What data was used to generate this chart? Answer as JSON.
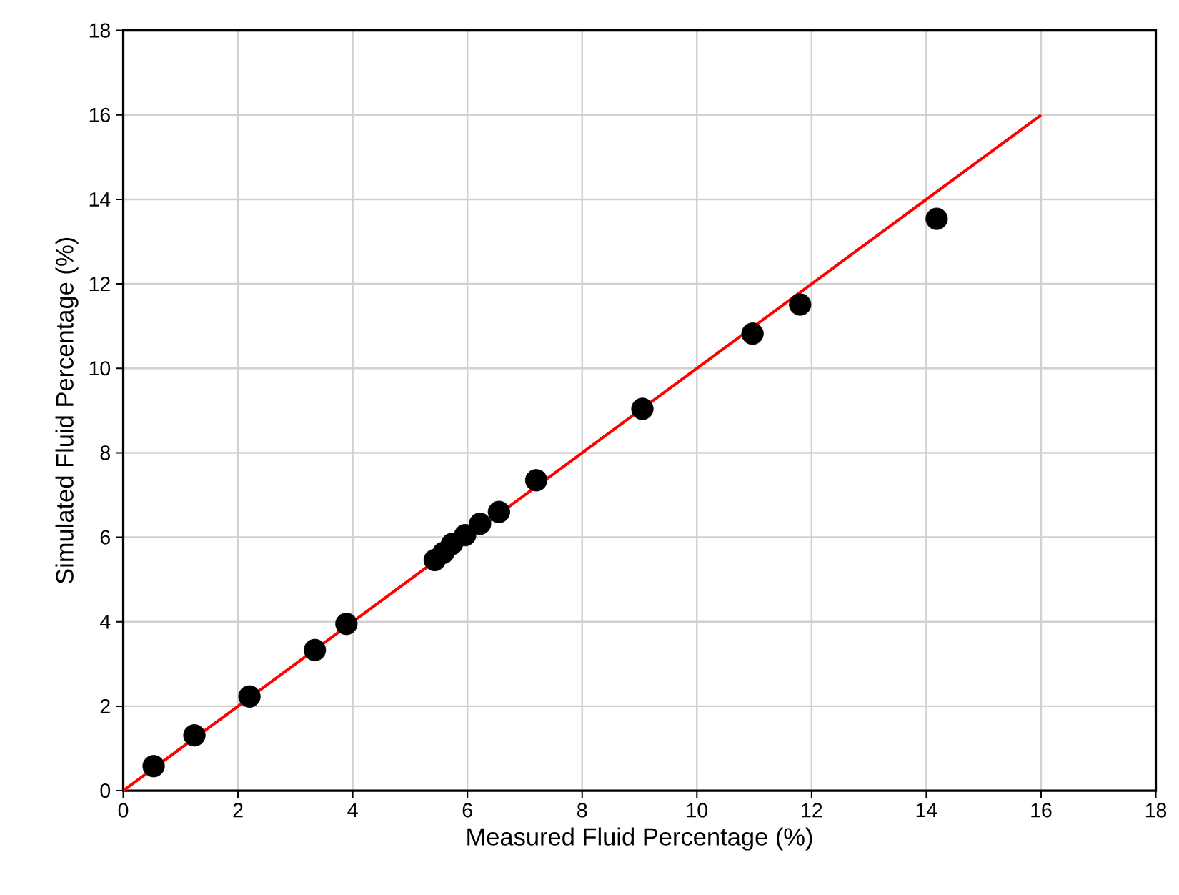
{
  "chart_data": {
    "type": "scatter",
    "xlabel": "Measured Fluid Percentage (%)",
    "ylabel": "Simulated Fluid Percentage (%)",
    "xlim": [
      0,
      18
    ],
    "ylim": [
      0,
      18
    ],
    "xticks": [
      0,
      2,
      4,
      6,
      8,
      10,
      12,
      14,
      16,
      18
    ],
    "yticks": [
      0,
      2,
      4,
      6,
      8,
      10,
      12,
      14,
      16,
      18
    ],
    "grid": true,
    "series": [
      {
        "marker": "circle",
        "color": "#000000",
        "x": [
          0.53,
          1.24,
          2.2,
          3.34,
          3.89,
          5.43,
          5.58,
          5.73,
          5.96,
          6.22,
          6.55,
          7.2,
          9.05,
          10.97,
          11.8,
          14.18
        ],
        "values": [
          0.58,
          1.31,
          2.23,
          3.33,
          3.95,
          5.46,
          5.63,
          5.84,
          6.05,
          6.32,
          6.6,
          7.35,
          9.04,
          10.82,
          11.51,
          13.54
        ]
      },
      {
        "type": "line",
        "marker": "none",
        "color": "#ff0000",
        "x": [
          0,
          16
        ],
        "values": [
          0,
          16
        ]
      }
    ]
  }
}
